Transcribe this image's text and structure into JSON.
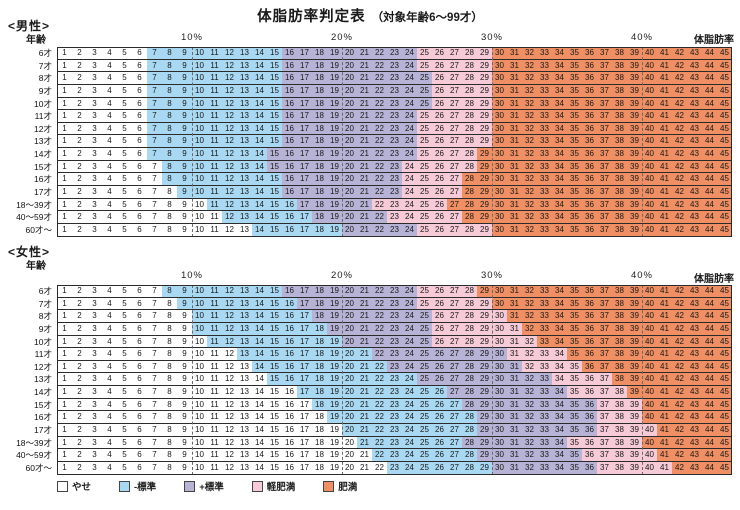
{
  "title": {
    "main": "体脂肪率判定表",
    "sub": "（対象年齢6〜99才）"
  },
  "header": {
    "age_label": "年齢",
    "bodyfat_label": "体脂肪率",
    "percent_ticks": [
      "10%",
      "20%",
      "30%",
      "40%"
    ]
  },
  "sections": [
    {
      "label": "<男性>"
    },
    {
      "label": "<女性>"
    }
  ],
  "legend": [
    {
      "label": "やせ",
      "color": "#ffffff"
    },
    {
      "label": "-標準",
      "color": "#a9d9f2"
    },
    {
      "label": "+標準",
      "color": "#b7b3d6"
    },
    {
      "label": "軽肥満",
      "color": "#f6cbd7"
    },
    {
      "label": "肥満",
      "color": "#ef8f63"
    }
  ],
  "chart_data": {
    "type": "heatmap",
    "title": "体脂肪率判定表（対象年齢6〜99才）",
    "x_label": "体脂肪率(%)",
    "x_range": [
      1,
      45
    ],
    "category_labels": [
      "やせ",
      "-標準",
      "+標準",
      "軽肥満",
      "肥満"
    ],
    "series": [
      {
        "name": "男性",
        "rows": [
          {
            "age": "6才",
            "starts": [
              1,
              7,
              16,
              25,
              30
            ]
          },
          {
            "age": "7才",
            "starts": [
              1,
              7,
              16,
              25,
              30
            ]
          },
          {
            "age": "8才",
            "starts": [
              1,
              7,
              16,
              26,
              30
            ]
          },
          {
            "age": "9才",
            "starts": [
              1,
              7,
              16,
              26,
              30
            ]
          },
          {
            "age": "10才",
            "starts": [
              1,
              7,
              16,
              26,
              30
            ]
          },
          {
            "age": "11才",
            "starts": [
              1,
              7,
              16,
              25,
              30
            ]
          },
          {
            "age": "12才",
            "starts": [
              1,
              7,
              16,
              25,
              30
            ]
          },
          {
            "age": "13才",
            "starts": [
              1,
              7,
              16,
              25,
              30
            ]
          },
          {
            "age": "14才",
            "starts": [
              1,
              7,
              15,
              25,
              29
            ]
          },
          {
            "age": "15才",
            "starts": [
              1,
              8,
              15,
              24,
              29
            ]
          },
          {
            "age": "16才",
            "starts": [
              1,
              8,
              16,
              24,
              28
            ]
          },
          {
            "age": "17才",
            "starts": [
              1,
              9,
              16,
              24,
              28
            ]
          },
          {
            "age": "18〜39才",
            "starts": [
              1,
              11,
              17,
              22,
              27
            ]
          },
          {
            "age": "40〜59才",
            "starts": [
              1,
              12,
              18,
              23,
              28
            ]
          },
          {
            "age": "60才〜",
            "starts": [
              1,
              14,
              20,
              25,
              30
            ]
          }
        ]
      },
      {
        "name": "女性",
        "rows": [
          {
            "age": "6才",
            "starts": [
              1,
              8,
              16,
              25,
              29
            ]
          },
          {
            "age": "7才",
            "starts": [
              1,
              9,
              17,
              25,
              30
            ]
          },
          {
            "age": "8才",
            "starts": [
              1,
              10,
              18,
              26,
              31
            ]
          },
          {
            "age": "9才",
            "starts": [
              1,
              10,
              19,
              26,
              32
            ]
          },
          {
            "age": "10才",
            "starts": [
              1,
              11,
              20,
              26,
              33
            ]
          },
          {
            "age": "11才",
            "starts": [
              1,
              13,
              22,
              31,
              35
            ]
          },
          {
            "age": "12才",
            "starts": [
              1,
              14,
              23,
              32,
              36
            ]
          },
          {
            "age": "13才",
            "starts": [
              1,
              15,
              25,
              34,
              38
            ]
          },
          {
            "age": "14才",
            "starts": [
              1,
              17,
              27,
              35,
              39
            ]
          },
          {
            "age": "15才",
            "starts": [
              1,
              18,
              28,
              37,
              40
            ]
          },
          {
            "age": "16才",
            "starts": [
              1,
              19,
              29,
              37,
              40
            ]
          },
          {
            "age": "17才",
            "starts": [
              1,
              20,
              29,
              37,
              41
            ]
          },
          {
            "age": "18〜39才",
            "starts": [
              1,
              21,
              28,
              35,
              40
            ]
          },
          {
            "age": "40〜59才",
            "starts": [
              1,
              22,
              29,
              36,
              41
            ]
          },
          {
            "age": "60才〜",
            "starts": [
              1,
              23,
              30,
              37,
              42
            ]
          }
        ]
      }
    ]
  }
}
